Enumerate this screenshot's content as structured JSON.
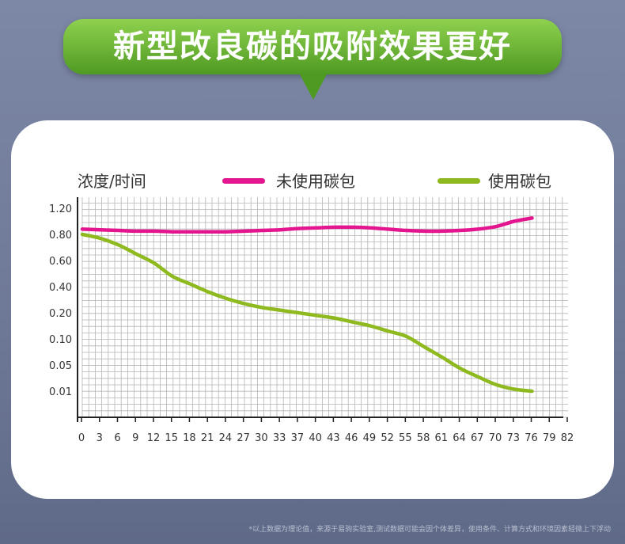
{
  "header": {
    "title": "新型改良碳的吸附效果更好"
  },
  "chart_data": {
    "type": "line",
    "ylabel": "浓度/时间",
    "xlabel": "",
    "categories": [
      "0",
      "3",
      "6",
      "9",
      "12",
      "15",
      "18",
      "21",
      "24",
      "27",
      "30",
      "33",
      "37",
      "40",
      "43",
      "46",
      "49",
      "52",
      "55",
      "58",
      "61",
      "64",
      "67",
      "70",
      "73",
      "76",
      "79",
      "82"
    ],
    "y_ticks": [
      "0.01",
      "0.05",
      "0.10",
      "0.20",
      "0.40",
      "0.60",
      "0.80",
      "1.20"
    ],
    "series": [
      {
        "name": "未使用碳包",
        "color": "#e3158f",
        "values": [
          0.88,
          0.87,
          0.86,
          0.85,
          0.85,
          0.84,
          0.84,
          0.84,
          0.84,
          0.85,
          0.86,
          0.87,
          0.89,
          0.9,
          0.91,
          0.91,
          0.9,
          0.88,
          0.86,
          0.85,
          0.85,
          0.86,
          0.88,
          0.92,
          1.0,
          1.05,
          null,
          null
        ]
      },
      {
        "name": "使用碳包",
        "color": "#8fba1f",
        "values": [
          0.8,
          0.77,
          0.72,
          0.65,
          0.58,
          0.48,
          0.42,
          0.36,
          0.31,
          0.27,
          0.24,
          0.22,
          0.2,
          0.19,
          0.18,
          0.165,
          0.15,
          0.13,
          0.11,
          0.085,
          0.065,
          0.045,
          0.032,
          0.02,
          0.013,
          0.01,
          null,
          null
        ]
      }
    ],
    "grid": true,
    "legend": "top"
  },
  "footnote": "*以上数据为理论值，来源于易驹实验室,测试数据可能会因个体差异，使用条件、计算方式和环境因素轻微上下浮动"
}
